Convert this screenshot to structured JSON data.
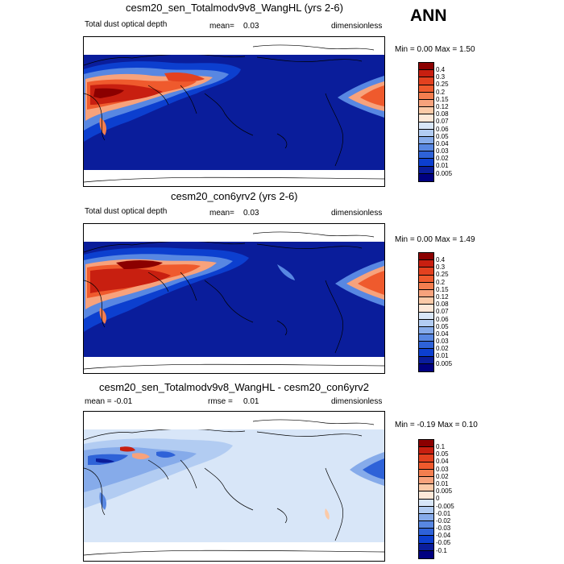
{
  "season": "ANN",
  "panels": [
    {
      "title": "cesm20_sen_Totalmodv9v8_WangHL (yrs 2-6)",
      "left_label": "Total dust optical depth",
      "stat_label": "mean=",
      "stat_value": "0.03",
      "units": "dimensionless",
      "range_text": "Min =   0.00 Max =   1.50",
      "colorbar": {
        "labels": [
          "0.4",
          "0.3",
          "0.25",
          "0.2",
          "0.15",
          "0.12",
          "0.08",
          "0.07",
          "0.06",
          "0.05",
          "0.04",
          "0.03",
          "0.02",
          "0.01",
          "0.005"
        ],
        "colors": [
          "#8b0000",
          "#c81f10",
          "#e3411f",
          "#ef5a2d",
          "#f37e4f",
          "#f7a27c",
          "#fbcaa8",
          "#fde8d8",
          "#d8e6f8",
          "#b2ccf2",
          "#86abea",
          "#5887e2",
          "#2e62d8",
          "#0c3fcf",
          "#0a1d9b",
          "#000080"
        ]
      }
    },
    {
      "title": "cesm20_con6yrv2 (yrs 2-6)",
      "left_label": "Total dust optical depth",
      "stat_label": "mean=",
      "stat_value": "0.03",
      "units": "dimensionless",
      "range_text": "Min =   0.00 Max =   1.49",
      "colorbar": {
        "labels": [
          "0.4",
          "0.3",
          "0.25",
          "0.2",
          "0.15",
          "0.12",
          "0.08",
          "0.07",
          "0.06",
          "0.05",
          "0.04",
          "0.03",
          "0.02",
          "0.01",
          "0.005"
        ],
        "colors": [
          "#8b0000",
          "#c81f10",
          "#e3411f",
          "#ef5a2d",
          "#f37e4f",
          "#f7a27c",
          "#fbcaa8",
          "#fde8d8",
          "#d8e6f8",
          "#b2ccf2",
          "#86abea",
          "#5887e2",
          "#2e62d8",
          "#0c3fcf",
          "#0a1d9b",
          "#000080"
        ]
      }
    },
    {
      "title": "cesm20_sen_Totalmodv9v8_WangHL - cesm20_con6yrv2",
      "left_label": "mean =  -0.01",
      "stat_label": "rmse =",
      "stat_value": "0.01",
      "units": "dimensionless",
      "range_text": "Min =  -0.19 Max =   0.10",
      "colorbar": {
        "labels": [
          "0.1",
          "0.05",
          "0.04",
          "0.03",
          "0.02",
          "0.01",
          "0.005",
          "0",
          "-0.005",
          "-0.01",
          "-0.02",
          "-0.03",
          "-0.04",
          "-0.05",
          "-0.1"
        ],
        "colors": [
          "#8b0000",
          "#c81f10",
          "#e3411f",
          "#ef5a2d",
          "#f37e4f",
          "#f7a27c",
          "#fbcaa8",
          "#fde8d8",
          "#d8e6f8",
          "#b2ccf2",
          "#86abea",
          "#5887e2",
          "#2e62d8",
          "#0c3fcf",
          "#0a1d9b",
          "#000080"
        ]
      }
    }
  ]
}
